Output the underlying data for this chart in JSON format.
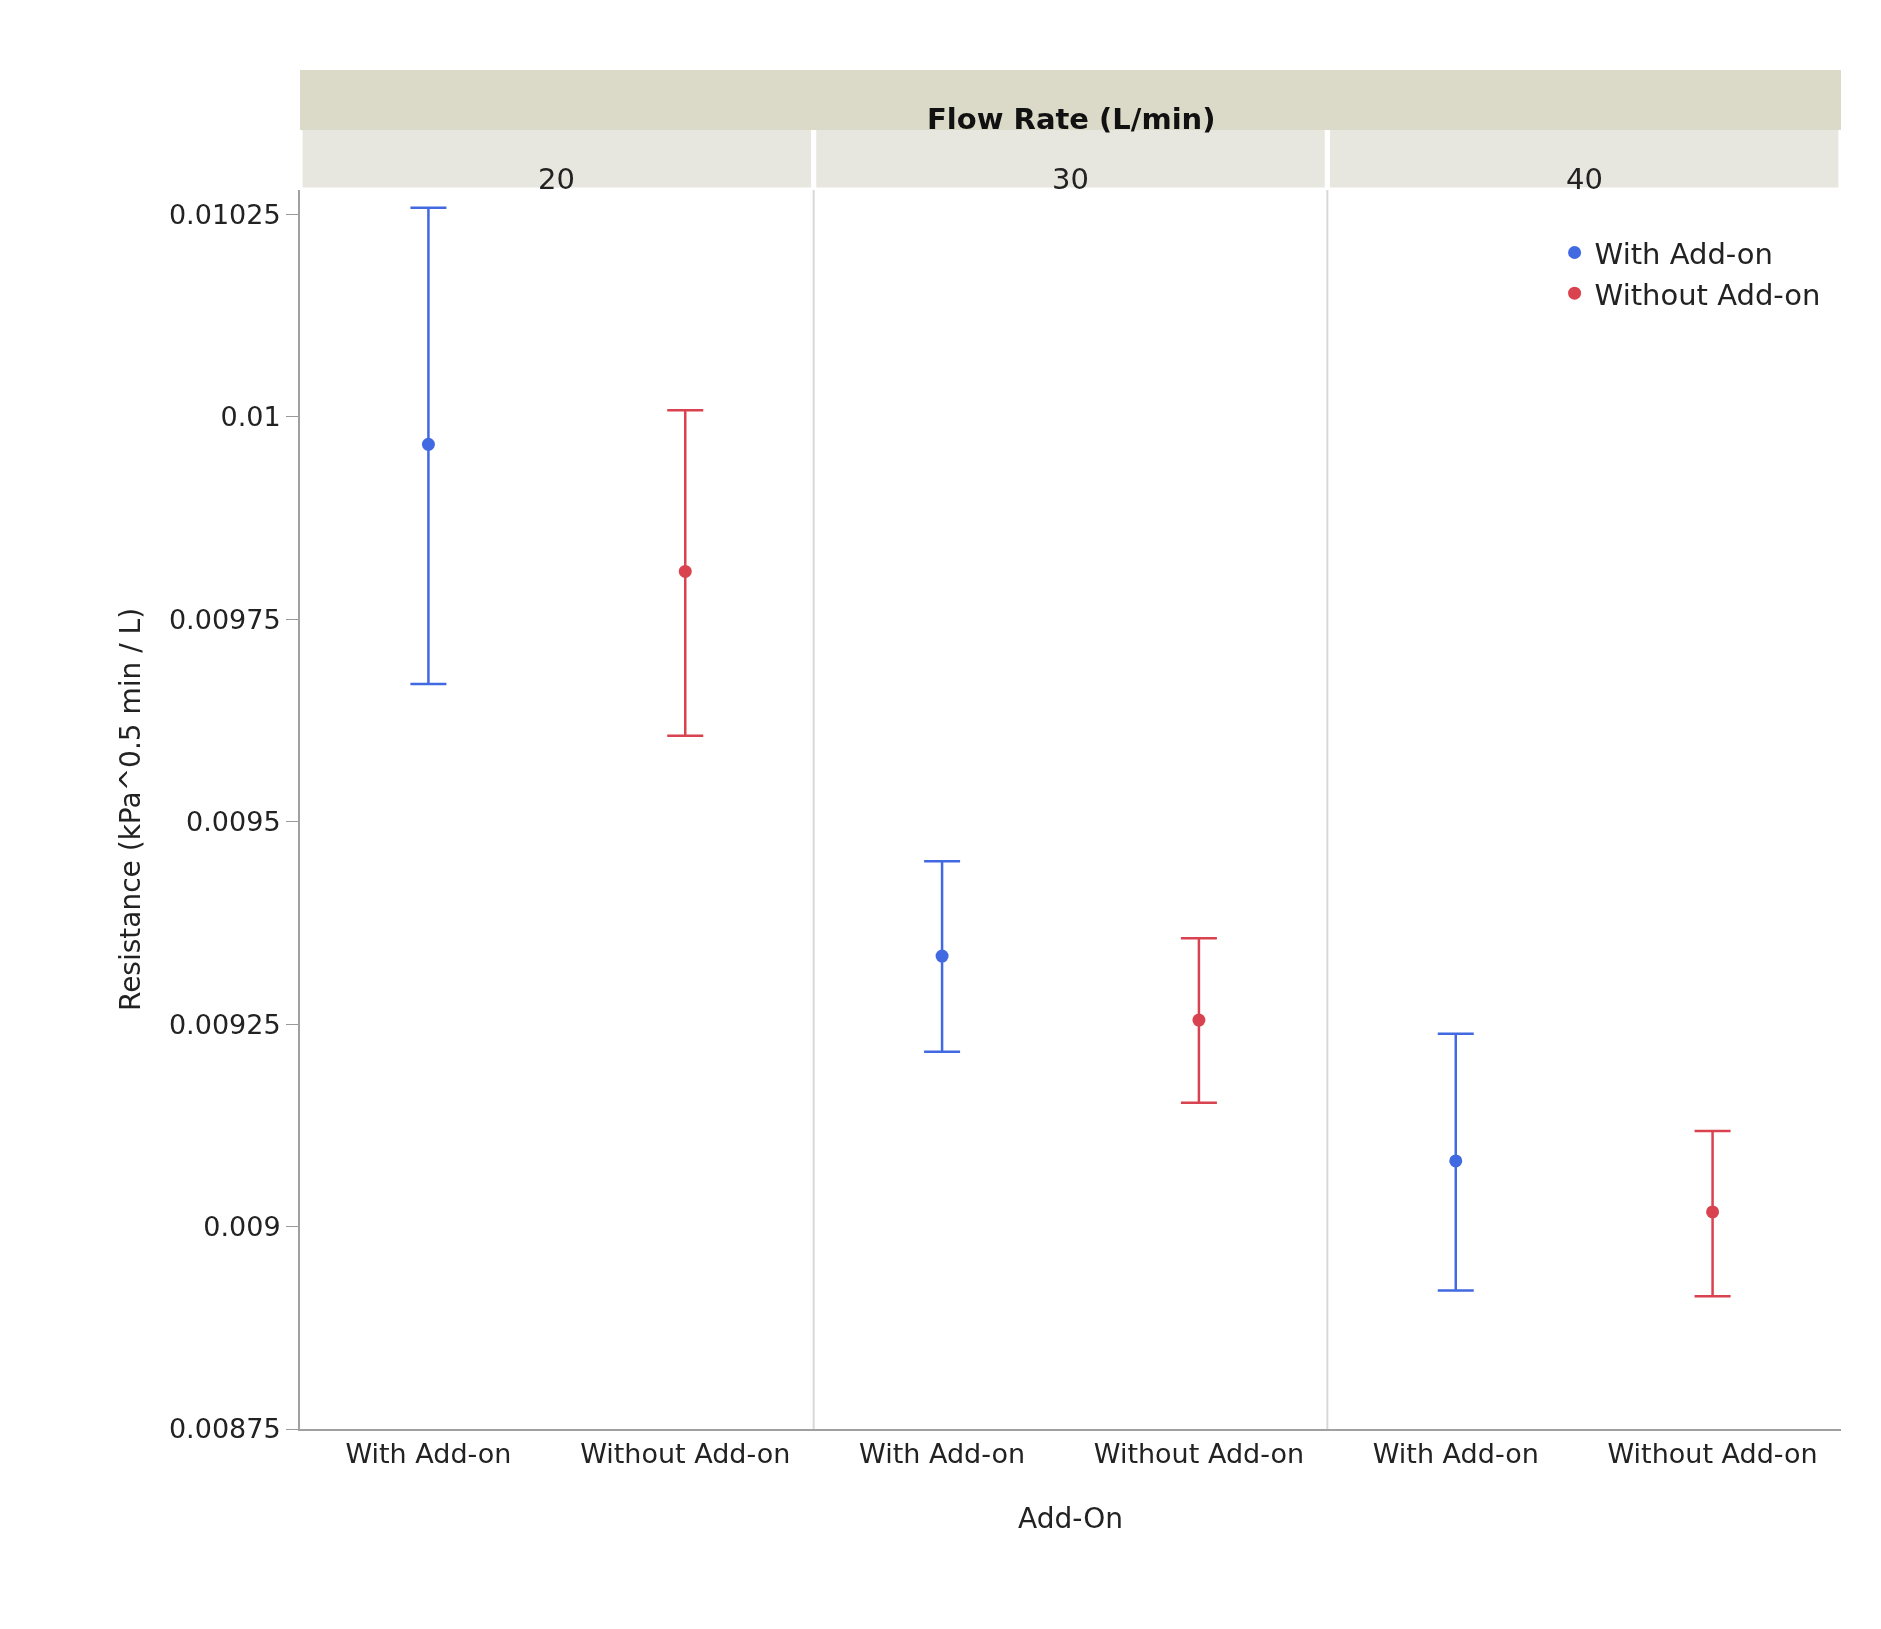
{
  "chart_data": {
    "type": "scatter",
    "title": "Flow Rate (L/min)",
    "annotations": [
      "20",
      "30",
      "40"
    ],
    "xlabel": "Add-On",
    "ylabel": "Resistance (kPa^0.5 min / L)",
    "categories": [
      "With Add-on",
      "Without Add-on",
      "With Add-on",
      "Without Add-on",
      "With Add-on",
      "Without Add-on"
    ],
    "marker": "circle",
    "legend": "top right",
    "ylim": [
      0.00875,
      0.01028
    ],
    "yticks": [
      0.00875,
      0.009,
      0.00925,
      0.0095,
      0.00975,
      0.01,
      0.01025
    ],
    "series": [
      {
        "name": "With Add-on",
        "color": "#4169e1",
        "values": [
          0.009966,
          null,
          0.009334,
          null,
          0.009081,
          null
        ],
        "errors": [
          [
            0.00967,
            0.010258
          ],
          null,
          [
            0.009216,
            0.009451
          ],
          null,
          [
            0.008921,
            0.009238
          ],
          null
        ]
      },
      {
        "name": "Without Add-on",
        "color": "#d9434f",
        "values": [
          null,
          0.009809,
          null,
          0.009255,
          null,
          0.009018
        ],
        "errors": [
          null,
          [
            0.009606,
            0.010008
          ],
          null,
          [
            0.009153,
            0.009356
          ],
          null,
          [
            0.008914,
            0.009118
          ]
        ]
      }
    ]
  }
}
